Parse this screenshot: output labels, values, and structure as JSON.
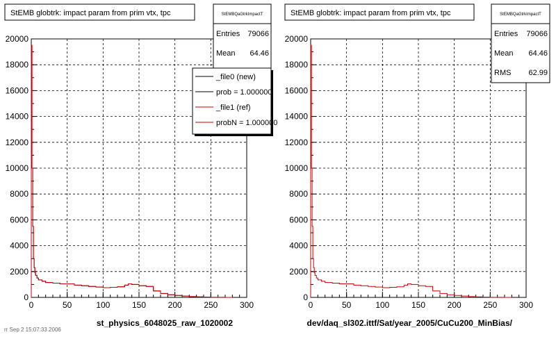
{
  "canvas": {
    "background": "#ffffff",
    "footer_text": "rr Sep 2 15:07:33 2006"
  },
  "colors": {
    "axis": "#000000",
    "grid": "#000000",
    "new_line": "#000000",
    "ref_line": "#cc0000",
    "box_fill": "#ffffff",
    "box_border": "#000000"
  },
  "panels": [
    {
      "title": "StEMB globtrk: impact param from prim vtx, tpc",
      "stats_title": "StEMBQaGtrkImpactT",
      "stats": [
        {
          "label": "Entries",
          "value": "79066"
        },
        {
          "label": "Mean",
          "value": "64.46"
        }
      ],
      "xlabel": "st_physics_6048025_raw_1020002",
      "legend": [
        {
          "label": "_file0 (new)",
          "color": "#000000"
        },
        {
          "label": "prob = 1.000000",
          "color": "#000000"
        },
        {
          "label": "_file1 (ref)",
          "color": "#cc0000"
        },
        {
          "label": "probN = 1.000000",
          "color": "#cc0000"
        }
      ]
    },
    {
      "title": "StEMB globtrk: impact param from prim vtx, tpc",
      "stats_title": "StEMBQaGtrkImpactT",
      "stats": [
        {
          "label": "Entries",
          "value": "79066"
        },
        {
          "label": "Mean",
          "value": "64.46"
        },
        {
          "label": "RMS",
          "value": "62.99"
        }
      ],
      "xlabel": "dev/daq_sl302.ittf/Sat/year_2005/CuCu200_MinBias/",
      "legend": []
    }
  ],
  "chart_data": [
    {
      "type": "histogram",
      "title": "StEMB globtrk: impact param from prim vtx, tpc",
      "xlabel": "st_physics_6048025_raw_1020002",
      "ylabel": "",
      "xlim": [
        0,
        300
      ],
      "ylim": [
        0,
        20000
      ],
      "xticks": [
        0,
        50,
        100,
        150,
        200,
        250,
        300
      ],
      "yticks": [
        0,
        2000,
        4000,
        6000,
        8000,
        10000,
        12000,
        14000,
        16000,
        18000,
        20000
      ],
      "grid": true,
      "legend_position": "top-right",
      "x": [
        0,
        1,
        2,
        3,
        4,
        5,
        6,
        8,
        10,
        15,
        20,
        30,
        40,
        50,
        60,
        70,
        80,
        90,
        100,
        110,
        120,
        130,
        135,
        140,
        150,
        160,
        170,
        180,
        190,
        200,
        210,
        220,
        230,
        240,
        250,
        260,
        270
      ],
      "series": [
        {
          "name": "_file0 (new)",
          "color": "#000000",
          "values": [
            19500,
            10000,
            5500,
            3000,
            2300,
            1900,
            1700,
            1500,
            1350,
            1250,
            1150,
            1100,
            1050,
            1050,
            950,
            900,
            850,
            800,
            750,
            780,
            820,
            950,
            1050,
            1000,
            900,
            850,
            500,
            300,
            200,
            150,
            100,
            60,
            40,
            20,
            10,
            5,
            0
          ]
        },
        {
          "name": "_file1 (ref)",
          "color": "#cc0000",
          "values": [
            19500,
            10000,
            5500,
            3000,
            2300,
            1900,
            1700,
            1500,
            1350,
            1250,
            1150,
            1100,
            1050,
            1050,
            950,
            900,
            850,
            800,
            750,
            780,
            820,
            950,
            1050,
            1000,
            900,
            850,
            500,
            300,
            200,
            150,
            100,
            60,
            40,
            20,
            10,
            5,
            0
          ]
        }
      ]
    },
    {
      "type": "histogram",
      "title": "StEMB globtrk: impact param from prim vtx, tpc",
      "xlabel": "dev/daq_sl302.ittf/Sat/year_2005/CuCu200_MinBias/",
      "ylabel": "",
      "xlim": [
        0,
        300
      ],
      "ylim": [
        0,
        20000
      ],
      "xticks": [
        0,
        50,
        100,
        150,
        200,
        250,
        300
      ],
      "yticks": [
        0,
        2000,
        4000,
        6000,
        8000,
        10000,
        12000,
        14000,
        16000,
        18000,
        20000
      ],
      "grid": true,
      "x": [
        0,
        1,
        2,
        3,
        4,
        5,
        6,
        8,
        10,
        15,
        20,
        30,
        40,
        50,
        60,
        70,
        80,
        90,
        100,
        110,
        120,
        130,
        135,
        140,
        150,
        160,
        170,
        180,
        190,
        200,
        210,
        220,
        230,
        240,
        250,
        260,
        270
      ],
      "series": [
        {
          "name": "",
          "color": "#cc0000",
          "values": [
            19500,
            10000,
            5500,
            3000,
            2300,
            1900,
            1700,
            1500,
            1350,
            1250,
            1150,
            1100,
            1050,
            1050,
            950,
            900,
            850,
            800,
            750,
            780,
            820,
            950,
            1050,
            1000,
            900,
            850,
            500,
            300,
            200,
            150,
            100,
            60,
            40,
            20,
            10,
            5,
            0
          ]
        }
      ]
    }
  ]
}
